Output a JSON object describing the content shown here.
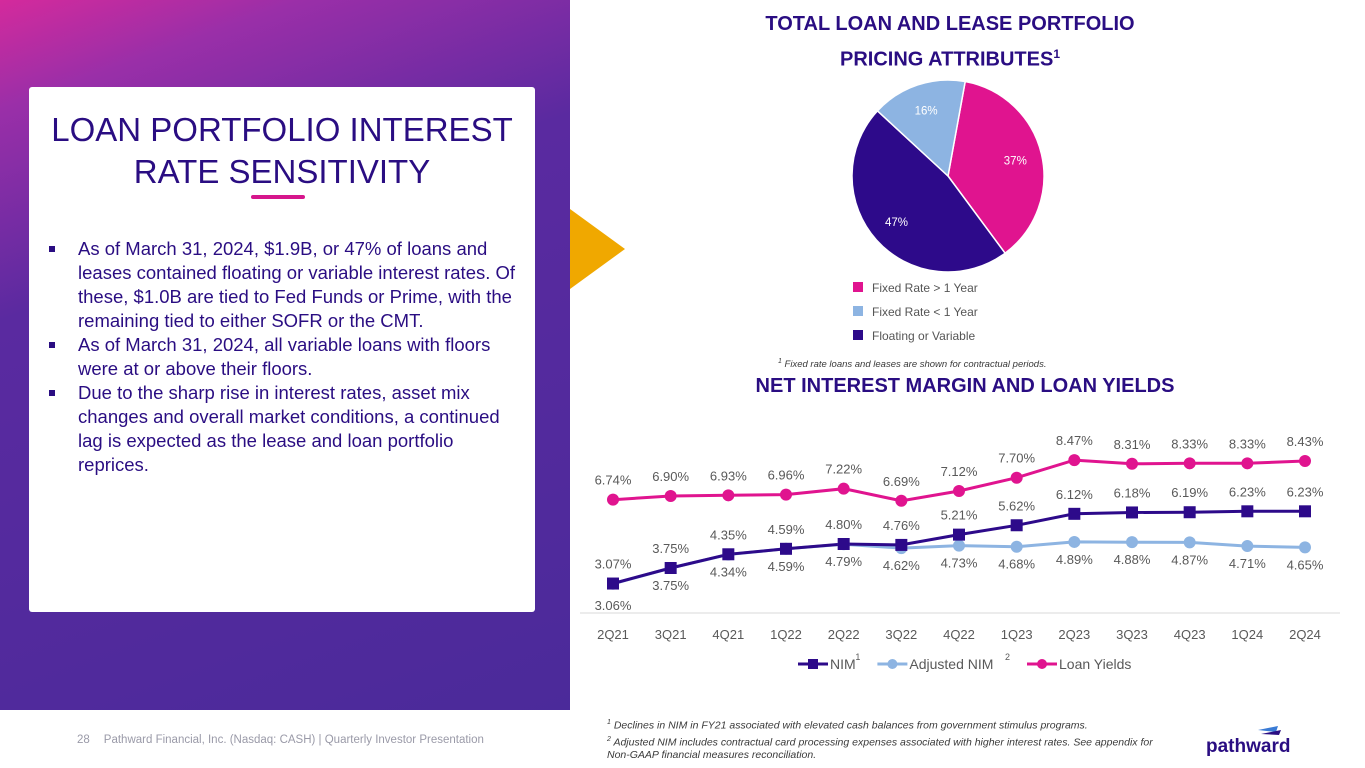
{
  "left_panel": {
    "title_line1": "LOAN PORTFOLIO INTEREST",
    "title_line2": "RATE SENSITIVITY",
    "bullets": [
      "As of March 31, 2024, $1.9B, or 47% of loans and leases contained floating or variable interest rates. Of these, $1.0B are tied to Fed Funds or Prime, with the remaining tied to either SOFR or the CMT.",
      "As of March 31, 2024, all variable loans with floors were at or above their floors.",
      "Due to the sharp rise in interest rates, asset mix changes and overall market conditions, a continued lag is expected as the lease and loan portfolio reprices."
    ]
  },
  "footer": {
    "page_number": "28",
    "text": "Pathward Financial, Inc. (Nasdaq: CASH) | Quarterly Investor Presentation"
  },
  "logo": {
    "text": "pathward",
    "color": "#2a0d82",
    "accent": "#3a7bd5"
  },
  "pie_footnote": {
    "marker": "1",
    "text": "Fixed rate loans and leases are shown for contractual periods."
  },
  "bottom_footnotes": [
    {
      "marker": "1",
      "text": "Declines in NIM in FY21 associated with elevated cash balances from government stimulus programs."
    },
    {
      "marker": "2",
      "text": "Adjusted NIM includes contractual card processing expenses associated with higher interest rates. See appendix for"
    },
    {
      "marker": "",
      "text": "Non-GAAP financial measures reconciliation."
    }
  ],
  "colors": {
    "navy": "#2a0d82",
    "magenta": "#d6168c",
    "light_blue": "#8db4e2",
    "gold": "#f0a800"
  },
  "chart_data": [
    {
      "type": "pie",
      "title_line1": "TOTAL LOAN AND LEASE PORTFOLIO",
      "title_line2": "PRICING ATTRIBUTES",
      "title_marker": "1",
      "slices": [
        {
          "name": "Fixed Rate > 1 Year",
          "value": 37,
          "label": "37%",
          "color": "#e0148f"
        },
        {
          "name": "Floating or Variable",
          "value": 47,
          "label": "47%",
          "color": "#2d0a8a"
        },
        {
          "name": "Fixed Rate < 1 Year",
          "value": 16,
          "label": "16%",
          "color": "#8db4e2"
        }
      ],
      "legend": [
        {
          "name": "Fixed Rate > 1 Year",
          "color": "#e0148f"
        },
        {
          "name": "Fixed Rate < 1 Year",
          "color": "#8db4e2"
        },
        {
          "name": "Floating or Variable",
          "color": "#2d0a8a"
        }
      ],
      "legend_position": "bottom"
    },
    {
      "type": "line",
      "title": "NET INTEREST MARGIN AND LOAN YIELDS",
      "categories": [
        "2Q21",
        "3Q21",
        "4Q21",
        "1Q22",
        "2Q22",
        "3Q22",
        "4Q22",
        "1Q23",
        "2Q23",
        "3Q23",
        "4Q23",
        "1Q24",
        "2Q24"
      ],
      "ylim": [
        2.0,
        9.0
      ],
      "series": [
        {
          "name": "NIM",
          "marker_sup": "1",
          "color": "#2d0a8a",
          "marker": "square",
          "values": [
            3.07,
            3.75,
            4.35,
            4.59,
            4.8,
            4.76,
            5.21,
            5.62,
            6.12,
            6.18,
            6.19,
            6.23,
            6.23
          ],
          "labels": [
            "3.07%",
            "3.75%",
            "4.35%",
            "4.59%",
            "4.80%",
            "4.76%",
            "5.21%",
            "5.62%",
            "6.12%",
            "6.18%",
            "6.19%",
            "6.23%",
            "6.23%"
          ]
        },
        {
          "name": "Adjusted NIM",
          "marker_sup": "2",
          "color": "#8db4e2",
          "marker": "circle",
          "values": [
            3.06,
            3.75,
            4.34,
            4.59,
            4.79,
            4.62,
            4.73,
            4.68,
            4.89,
            4.88,
            4.87,
            4.71,
            4.65
          ],
          "labels": [
            "3.06%",
            "3.75%",
            "4.34%",
            "4.59%",
            "4.79%",
            "4.62%",
            "4.73%",
            "4.68%",
            "4.89%",
            "4.88%",
            "4.87%",
            "4.71%",
            "4.65%"
          ]
        },
        {
          "name": "Loan Yields",
          "marker_sup": "",
          "color": "#e0148f",
          "marker": "circle",
          "values": [
            6.74,
            6.9,
            6.93,
            6.96,
            7.22,
            6.69,
            7.12,
            7.7,
            8.47,
            8.31,
            8.33,
            8.33,
            8.43
          ],
          "labels": [
            "6.74%",
            "6.90%",
            "6.93%",
            "6.96%",
            "7.22%",
            "6.69%",
            "7.12%",
            "7.70%",
            "8.47%",
            "8.31%",
            "8.33%",
            "8.33%",
            "8.43%"
          ]
        }
      ],
      "legend_position": "bottom"
    }
  ]
}
